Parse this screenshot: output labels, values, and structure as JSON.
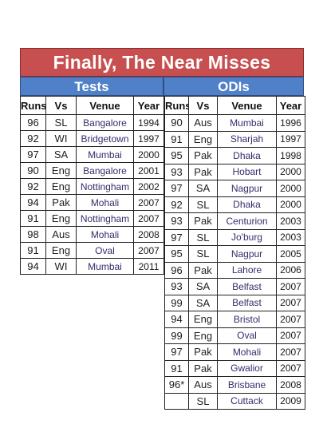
{
  "title": "Finally, The Near Misses",
  "sections": {
    "tests": "Tests",
    "odis": "ODIs"
  },
  "columns": {
    "runs": "Runs",
    "vs": "Vs",
    "venue": "Venue",
    "year": "Year"
  },
  "tests": [
    {
      "runs": "96",
      "vs": "SL",
      "venue": "Bangalore",
      "year": "1994"
    },
    {
      "runs": "92",
      "vs": "WI",
      "venue": "Bridgetown",
      "year": "1997"
    },
    {
      "runs": "97",
      "vs": "SA",
      "venue": "Mumbai",
      "year": "2000"
    },
    {
      "runs": "90",
      "vs": "Eng",
      "venue": "Bangalore",
      "year": "2001"
    },
    {
      "runs": "92",
      "vs": "Eng",
      "venue": "Nottingham",
      "year": "2002"
    },
    {
      "runs": "94",
      "vs": "Pak",
      "venue": "Mohali",
      "year": "2007"
    },
    {
      "runs": "91",
      "vs": "Eng",
      "venue": "Nottingham",
      "year": "2007"
    },
    {
      "runs": "98",
      "vs": "Aus",
      "venue": "Mohali",
      "year": "2008"
    },
    {
      "runs": "91",
      "vs": "Eng",
      "venue": "Oval",
      "year": "2007"
    },
    {
      "runs": "94",
      "vs": "WI",
      "venue": "Mumbai",
      "year": "2011"
    }
  ],
  "odis": [
    {
      "runs": "90",
      "vs": "Aus",
      "venue": "Mumbai",
      "year": "1996"
    },
    {
      "runs": "91",
      "vs": "Eng",
      "venue": "Sharjah",
      "year": "1997"
    },
    {
      "runs": "95",
      "vs": "Pak",
      "venue": "Dhaka",
      "year": "1998"
    },
    {
      "runs": "93",
      "vs": "Pak",
      "venue": "Hobart",
      "year": "2000"
    },
    {
      "runs": "97",
      "vs": "SA",
      "venue": "Nagpur",
      "year": "2000"
    },
    {
      "runs": "92",
      "vs": "SL",
      "venue": "Dhaka",
      "year": "2000"
    },
    {
      "runs": "93",
      "vs": "Pak",
      "venue": "Centurion",
      "year": "2003"
    },
    {
      "runs": "97",
      "vs": "SL",
      "venue": "Jo'burg",
      "year": "2003"
    },
    {
      "runs": "95",
      "vs": "SL",
      "venue": "Nagpur",
      "year": "2005"
    },
    {
      "runs": "96",
      "vs": "Pak",
      "venue": "Lahore",
      "year": "2006"
    },
    {
      "runs": "93",
      "vs": "SA",
      "venue": "Belfast",
      "year": "2007"
    },
    {
      "runs": "99",
      "vs": "SA",
      "venue": "Belfast",
      "year": "2007"
    },
    {
      "runs": "94",
      "vs": "Eng",
      "venue": "Bristol",
      "year": "2007"
    },
    {
      "runs": "99",
      "vs": "Eng",
      "venue": "Oval",
      "year": "2007"
    },
    {
      "runs": "97",
      "vs": "Pak",
      "venue": "Mohali",
      "year": "2007"
    },
    {
      "runs": "91",
      "vs": "Pak",
      "venue": "Gwalior",
      "year": "2007"
    },
    {
      "runs": "96*",
      "vs": "Aus",
      "venue": "Brisbane",
      "year": "2008"
    },
    {
      "runs": "",
      "vs": "SL",
      "venue": "Cuttack",
      "year": "2009"
    }
  ]
}
